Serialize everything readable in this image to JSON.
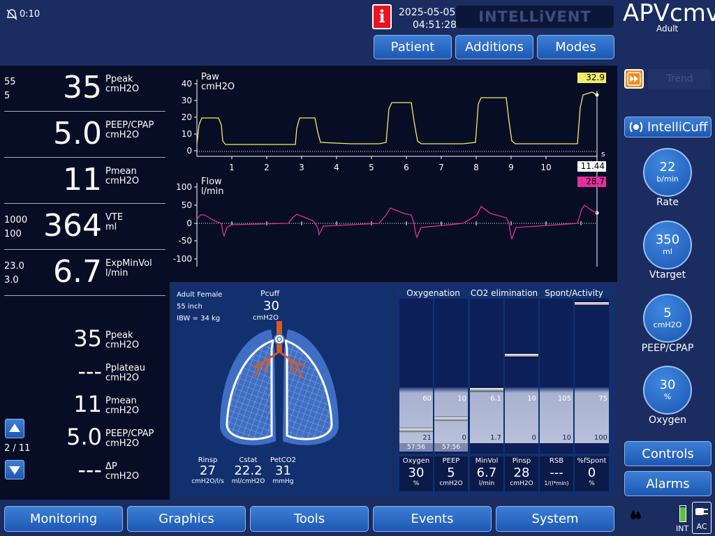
{
  "status": {
    "alarm_timer": "0:10",
    "date": "2025-05-05",
    "time": "04:51:28",
    "brand": "INTELLiVENT",
    "mode": "APVcmv",
    "mode_sub": "Adult",
    "info_icon": "i"
  },
  "top_buttons": {
    "patient": "Patient",
    "additions": "Additions",
    "modes": "Modes"
  },
  "monitor_primary": [
    {
      "name": "Ppeak",
      "unit": "cmH2O",
      "value": "35",
      "hi": "55",
      "lo": "5"
    },
    {
      "name": "PEEP/CPAP",
      "unit": "cmH2O",
      "value": "5.0",
      "hi": "",
      "lo": ""
    },
    {
      "name": "Pmean",
      "unit": "cmH2O",
      "value": "11",
      "hi": "",
      "lo": ""
    },
    {
      "name": "VTE",
      "unit": "ml",
      "value": "364",
      "hi": "1000",
      "lo": "100"
    },
    {
      "name": "ExpMinVol",
      "unit": "l/min",
      "value": "6.7",
      "hi": "23.0",
      "lo": "3.0"
    }
  ],
  "monitor_secondary": [
    {
      "name": "Ppeak",
      "unit": "cmH2O",
      "value": "35"
    },
    {
      "name": "Pplateau",
      "unit": "cmH2O",
      "value": "---"
    },
    {
      "name": "Pmean",
      "unit": "cmH2O",
      "value": "11"
    },
    {
      "name": "PEEP/CPAP",
      "unit": "cmH2O",
      "value": "5.0"
    },
    {
      "name": "ΔP",
      "unit": "cmH2O",
      "value": "---"
    }
  ],
  "paging": {
    "label": "2 / 11"
  },
  "waveforms": {
    "paw": {
      "title": "Paw",
      "unit": "cmH2O",
      "current": "32.9",
      "yticks": [
        "40",
        "30",
        "20",
        "10",
        "0"
      ],
      "xticks": [
        "1",
        "2",
        "3",
        "4",
        "5",
        "6",
        "7",
        "8",
        "9",
        "10"
      ],
      "x_unit": "s",
      "time_readout": "11.44",
      "color": "#f2ee6a"
    },
    "flow": {
      "title": "Flow",
      "unit": "l/min",
      "current": "28.7",
      "yticks": [
        "100",
        "50",
        "0",
        "-50",
        "-100"
      ],
      "color": "#e0309a"
    }
  },
  "lung_panel": {
    "patient": "Adult Female",
    "height": "55 inch",
    "ibw": "IBW = 34 kg",
    "pcuff_label": "Pcuff",
    "pcuff_value": "30",
    "pcuff_unit": "cmH2O",
    "stats": [
      {
        "name": "Rinsp",
        "value": "27",
        "unit": "cmH2O/l/s"
      },
      {
        "name": "Cstat",
        "value": "22.2",
        "unit": "ml/cmH2O"
      },
      {
        "name": "PetCO2",
        "value": "31",
        "unit": "mmHg"
      }
    ]
  },
  "intellivent_panel": {
    "headers": [
      "Oxygenation",
      "CO2 elimination",
      "Spont/Activity"
    ],
    "bars": [
      {
        "name": "Oxygen",
        "value": "30",
        "unit": "%",
        "top": "60",
        "bottom": "21",
        "time": "57:56"
      },
      {
        "name": "PEEP",
        "value": "5",
        "unit": "cmH2O",
        "top": "10",
        "bottom": "0",
        "time": "57:56"
      },
      {
        "name": "MinVol",
        "value": "6.7",
        "unit": "l/min",
        "top": "6.1",
        "bottom": "1.7",
        "time": ""
      },
      {
        "name": "Pinsp",
        "value": "28",
        "unit": "cmH2O",
        "top": "10",
        "bottom": "0",
        "time": ""
      },
      {
        "name": "RSB",
        "value": "---",
        "unit": "1/(l*min)",
        "top": "105",
        "bottom": "10",
        "time": ""
      },
      {
        "name": "%fSpont",
        "value": "0",
        "unit": "%",
        "top": "75",
        "bottom": "100",
        "time": ""
      }
    ]
  },
  "right_panel": {
    "trend": "Trend",
    "intellicuff": "IntelliCuff",
    "controls": [
      {
        "value": "22",
        "unit": "b/min",
        "label": "Rate"
      },
      {
        "value": "350",
        "unit": "ml",
        "label": "Vtarget"
      },
      {
        "value": "5",
        "unit": "cmH2O",
        "label": "PEEP/CPAP"
      },
      {
        "value": "30",
        "unit": "%",
        "label": "Oxygen"
      }
    ],
    "controls_btn": "Controls",
    "alarms_btn": "Alarms"
  },
  "bottom_nav": [
    "Monitoring",
    "Graphics",
    "Tools",
    "Events",
    "System"
  ],
  "power": {
    "int": "INT",
    "ac": "AC"
  },
  "colors": {
    "paw": "#f2ee6a",
    "flow": "#e0309a",
    "bg": "#1b2c60",
    "panel": "#070d24",
    "button": "#2566c0"
  }
}
